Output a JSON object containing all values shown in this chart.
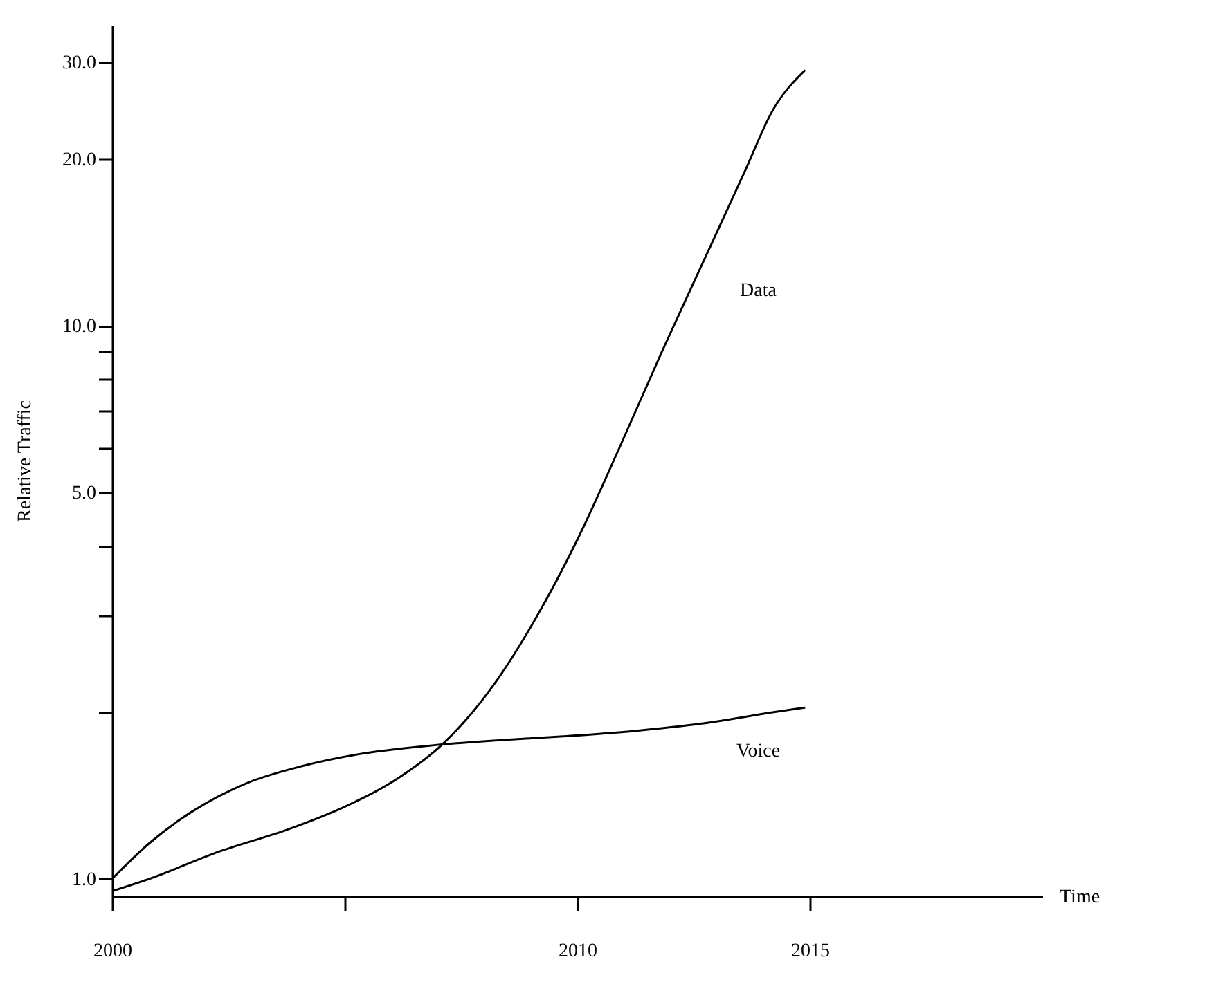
{
  "chart_data": {
    "type": "line",
    "xlabel": "Time",
    "ylabel": "Relative Traffic",
    "log": "y",
    "grid": false,
    "legend": false,
    "marker": "none",
    "line_style": "solid",
    "xlim": [
      2000,
      2020
    ],
    "xticks": [
      2000,
      {
        "value": 2005,
        "label": null
      },
      2010,
      2015
    ],
    "ylim": [
      0.93,
      35
    ],
    "yticks": [
      {
        "value": 1,
        "label": "1.0"
      },
      {
        "value": 2,
        "label": null
      },
      {
        "value": 3,
        "label": null
      },
      {
        "value": 4,
        "label": null
      },
      {
        "value": 5,
        "label": "5.0"
      },
      {
        "value": 6,
        "label": null
      },
      {
        "value": 7,
        "label": null
      },
      {
        "value": 8,
        "label": null
      },
      {
        "value": 9,
        "label": null
      },
      {
        "value": 10,
        "label": "10.0"
      },
      {
        "value": 20,
        "label": "20.0"
      },
      {
        "value": 30,
        "label": "30.0"
      }
    ],
    "series": [
      {
        "name": "Data",
        "color": "#000000",
        "x": [
          2000,
          2000.8,
          2002.3,
          2003.8,
          2005,
          2006.2,
          2007.1,
          2008.2,
          2009.1,
          2010,
          2010.9,
          2011.8,
          2012.7,
          2013.6,
          2014.2,
          2014.9
        ],
        "values": [
          0.95,
          1.0,
          1.12,
          1.23,
          1.35,
          1.53,
          1.75,
          2.24,
          2.95,
          4.1,
          6.0,
          8.9,
          13,
          19,
          24.5,
          29
        ]
      },
      {
        "name": "Voice",
        "color": "#000000",
        "x": [
          2000,
          2000.8,
          2001.7,
          2002.9,
          2004.1,
          2005.3,
          2006.8,
          2008.3,
          2009.7,
          2011.2,
          2012.7,
          2014.2,
          2014.9
        ],
        "values": [
          1.0,
          1.16,
          1.32,
          1.49,
          1.6,
          1.68,
          1.74,
          1.78,
          1.81,
          1.85,
          1.91,
          2.0,
          2.04
        ]
      }
    ]
  }
}
